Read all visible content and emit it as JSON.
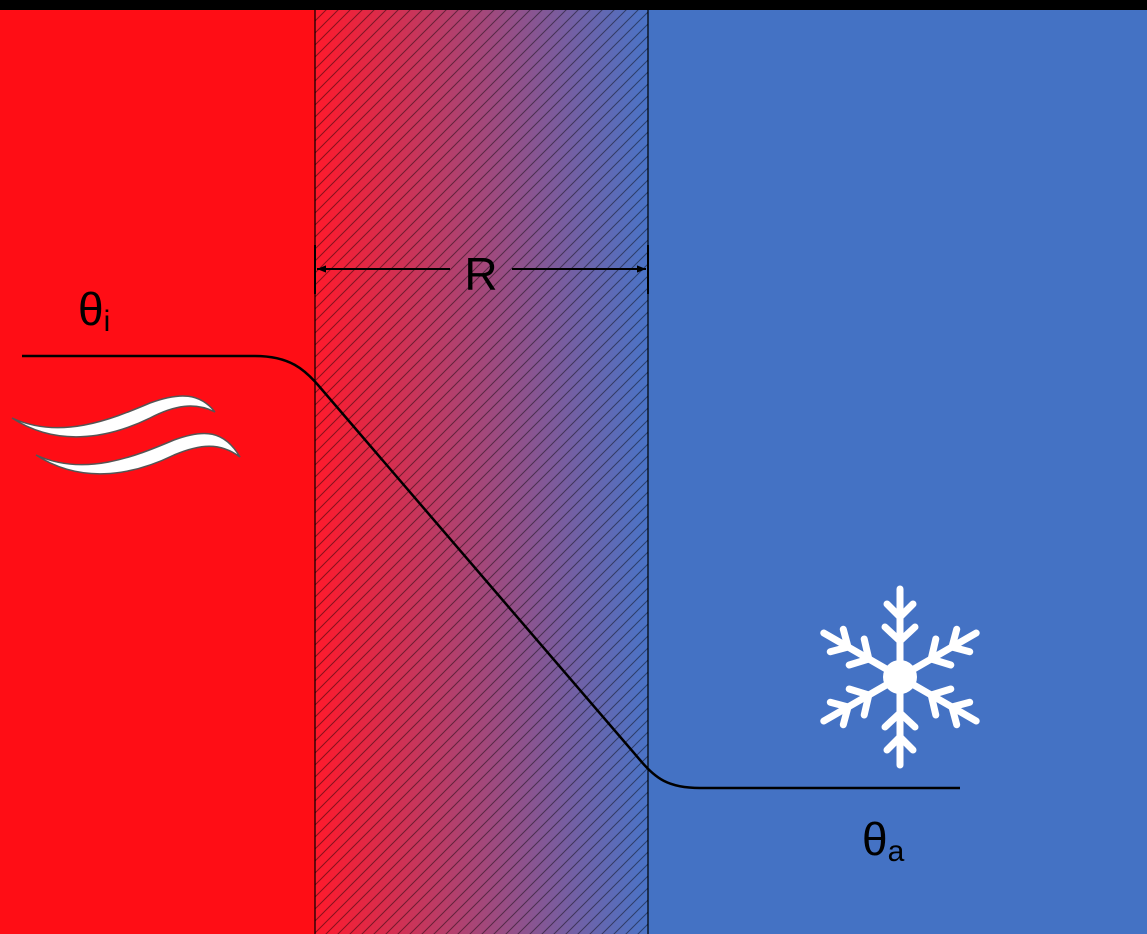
{
  "diagram": {
    "labels": {
      "inside_symbol": "θ",
      "inside_subscript": "i",
      "resistance": "R",
      "outside_symbol": "θ",
      "outside_subscript": "a"
    },
    "colors": {
      "top_bar": "#000000",
      "warm_zone": "#FF0D15",
      "cold_zone": "#4472C4",
      "wall_gradient_start": "#FF1A2C",
      "wall_gradient_end": "#4A74C7",
      "lines": "#000000",
      "icons": "#FFFFFF"
    },
    "icons": {
      "warm": "heat-waves-icon",
      "cold": "snowflake-icon"
    }
  }
}
